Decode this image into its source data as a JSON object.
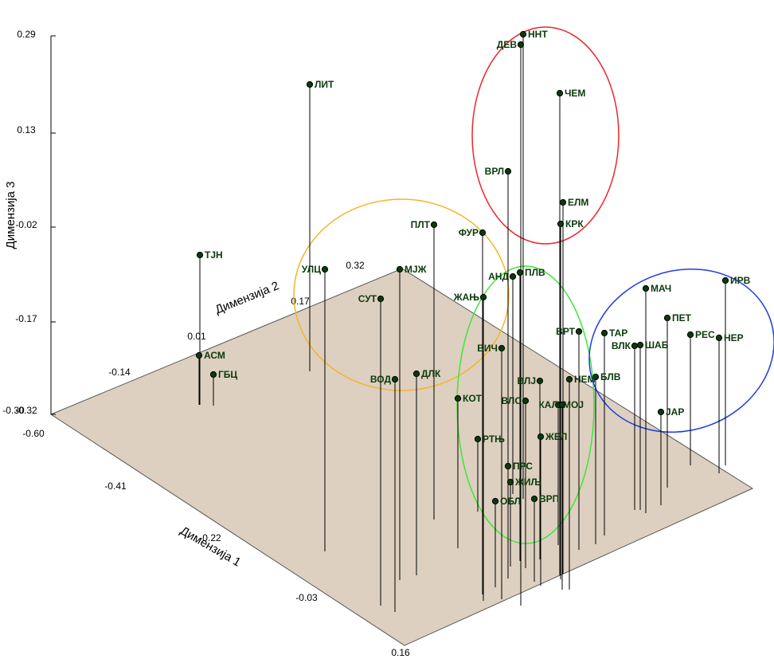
{
  "chart_data": {
    "type": "scatter3d",
    "axes": {
      "x": {
        "label": "Димензија 1",
        "ticks": [
          "-0.60",
          "-0.41",
          "-0.22",
          "-0.03",
          "0.16"
        ]
      },
      "y": {
        "label": "Димензија 2",
        "ticks": [
          "-0.30",
          "-0.14",
          "0.01",
          "0.17",
          "0.32"
        ]
      },
      "z": {
        "label": "Димензија 3",
        "ticks": [
          "-0.32",
          "-0.17",
          "-0.02",
          "0.13",
          "0.29"
        ]
      }
    },
    "colors": {
      "floor": "#ddd0c0",
      "point": "#0b3a0b",
      "label": "#0b3a0b",
      "cluster_red": "#e8282e",
      "cluster_orange": "#f3b52a",
      "cluster_green": "#3fe53a",
      "cluster_blue": "#1f3ce0"
    },
    "points": [
      {
        "label": "ННТ"
      },
      {
        "label": "ДЕВ"
      },
      {
        "label": "ЧЕМ"
      },
      {
        "label": "ЛИТ"
      },
      {
        "label": "ВРЛ"
      },
      {
        "label": "ЕЛМ"
      },
      {
        "label": "КРК"
      },
      {
        "label": "ПЛТ"
      },
      {
        "label": "ФУР"
      },
      {
        "label": "ТЈН"
      },
      {
        "label": "УЛЦ"
      },
      {
        "label": "МЈЖ"
      },
      {
        "label": "АНД"
      },
      {
        "label": "ПЛВ"
      },
      {
        "label": "ЖАЊ"
      },
      {
        "label": "СУТ"
      },
      {
        "label": "МАЧ"
      },
      {
        "label": "ИРВ"
      },
      {
        "label": "ПЕТ"
      },
      {
        "label": "ВРТ"
      },
      {
        "label": "ТАР"
      },
      {
        "label": "РЕС"
      },
      {
        "label": "НЕР"
      },
      {
        "label": "ВЛК"
      },
      {
        "label": "ШАБ"
      },
      {
        "label": "ВИЧ"
      },
      {
        "label": "АСМ"
      },
      {
        "label": "ГБЦ"
      },
      {
        "label": "ВОД"
      },
      {
        "label": "ДЛК"
      },
      {
        "label": "БЛВ"
      },
      {
        "label": "НЕМ"
      },
      {
        "label": "ВЛЈ"
      },
      {
        "label": "КОТ"
      },
      {
        "label": "ВЛС"
      },
      {
        "label": "МОЈ"
      },
      {
        "label": "КАЛ"
      },
      {
        "label": "ЈАР"
      },
      {
        "label": "РТЊ"
      },
      {
        "label": "ЖЕЛ"
      },
      {
        "label": "ПРС"
      },
      {
        "label": "ЖИЉ"
      },
      {
        "label": "ОБЛ"
      },
      {
        "label": "ВРП"
      }
    ]
  }
}
